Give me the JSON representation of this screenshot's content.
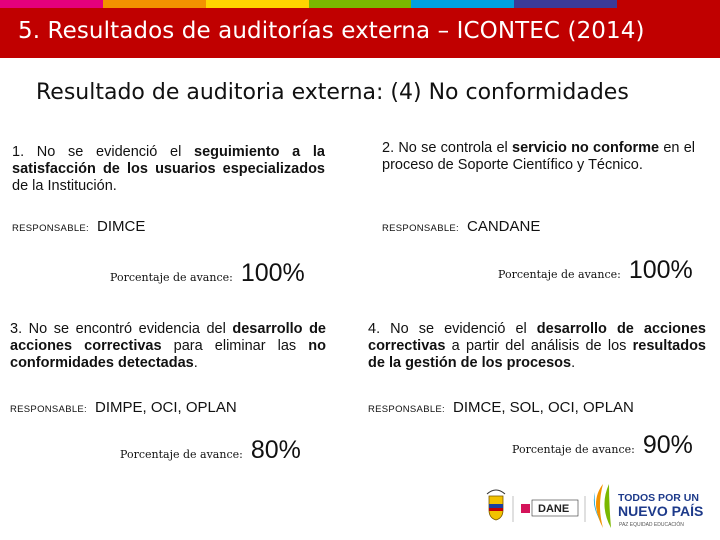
{
  "colors": {
    "header_bg": "#c00000",
    "stripe": [
      "#e4007c",
      "#f39200",
      "#ffd500",
      "#7ab800",
      "#00a0df",
      "#3b3b98",
      "#c00000"
    ]
  },
  "header": {
    "title": "5. Resultados de auditorías externa – ICONTEC  (2014)"
  },
  "subtitle": {
    "pre": "Resultado de auditoria externa: (",
    "num": "4",
    "post": ") No conformidades"
  },
  "findings": [
    {
      "num": "1.",
      "pre": " No se evidenció el ",
      "highlight": "seguimiento a la satisfacción de los usuarios especializados",
      "post": " de la Institución.",
      "resp_label": "RESPONSABLE:",
      "resp_value": "DIMCE",
      "pct_label": "Porcentaje de avance:",
      "pct_value": "100%",
      "progress": 1.0
    },
    {
      "num": "2.",
      "pre": " No se controla el ",
      "highlight": "servicio no conforme",
      "post": " en el proceso de Soporte Científico y Técnico.",
      "resp_label": "RESPONSABLE:",
      "resp_value": "CANDANE",
      "pct_label": "Porcentaje de avance:",
      "pct_value": "100%",
      "progress": 1.0
    },
    {
      "num": "3.",
      "pre": " No se encontró evidencia del ",
      "highlight": "desarrollo de acciones correctivas",
      "post": " para eliminar las ",
      "highlight2": "no conformidades detectadas",
      "post2": ".",
      "resp_label": "RESPONSABLE:",
      "resp_value": "DIMPE, OCI, OPLAN",
      "pct_label": "Porcentaje de avance:",
      "pct_value": "80%",
      "progress": 0.8
    },
    {
      "num": "4.",
      "pre": " No se evidenció el ",
      "highlight": "desarrollo de acciones correctivas",
      "post": " a partir del análisis de los ",
      "highlight2": "resultados de la gestión de los procesos",
      "post2": ".",
      "resp_label": "RESPONSABLE:",
      "resp_value": "DIMCE, SOL,  OCI, OPLAN",
      "pct_label": "Porcentaje de avance:",
      "pct_value": "90%",
      "progress": 0.9
    }
  ],
  "logos": {
    "shield": "colombia-shield-icon",
    "dane": "DANE",
    "todos_line1": "TODOS POR UN",
    "todos_line2": "NUEVO PAÍS",
    "todos_line3": "PAZ  EQUIDAD  EDUCACIÓN"
  }
}
